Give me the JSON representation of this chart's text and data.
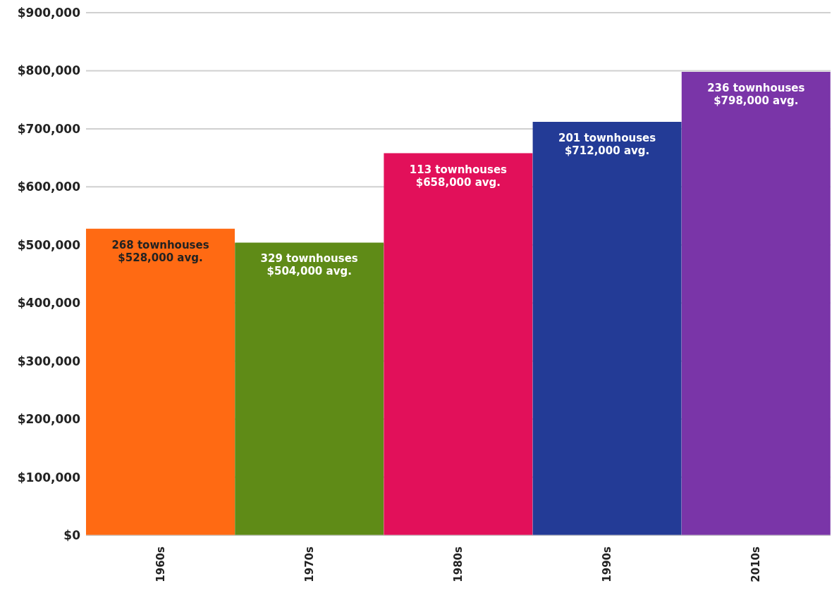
{
  "chart_data": {
    "type": "bar",
    "categories": [
      "1960s",
      "1970s",
      "1980s",
      "1990s",
      "2010s"
    ],
    "values": [
      528000,
      504000,
      658000,
      712000,
      798000
    ],
    "colors": [
      "#ff6a13",
      "#5f8b17",
      "#e2105a",
      "#233b96",
      "#7a35a8"
    ],
    "value_labels": [
      "268 townhouses\n$528,000 avg.",
      "329 townhouses\n$504,000 avg.",
      "113 townhouses\n$658,000 avg.",
      "201 townhouses\n$712,000 avg.",
      "236 townhouses\n$798,000 avg."
    ],
    "ylim": [
      0,
      900000
    ],
    "yticks": [
      {
        "value": 0,
        "label": "$0"
      },
      {
        "value": 100000,
        "label": "$100,000"
      },
      {
        "value": 200000,
        "label": "$200,000"
      },
      {
        "value": 300000,
        "label": "$300,000"
      },
      {
        "value": 400000,
        "label": "$400,000"
      },
      {
        "value": 500000,
        "label": "$500,000"
      },
      {
        "value": 600000,
        "label": "$600,000"
      },
      {
        "value": 700000,
        "label": "$700,000"
      },
      {
        "value": 800000,
        "label": "$800,000"
      },
      {
        "value": 900000,
        "label": "$900,000"
      }
    ],
    "grid": "y",
    "legend": false
  }
}
